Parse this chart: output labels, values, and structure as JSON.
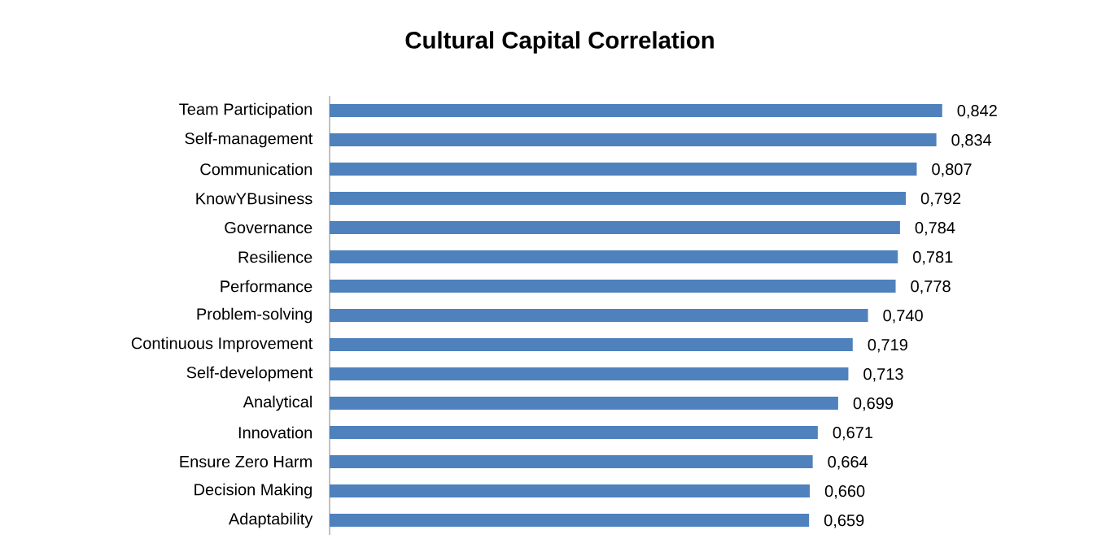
{
  "chart_data": {
    "type": "bar",
    "orientation": "horizontal",
    "title": "Cultural Capital Correlation",
    "categories": [
      "Team Participation",
      "Self-management",
      "Communication",
      "KnowYBusiness",
      "Governance",
      "Resilience",
      "Performance",
      "Problem-solving",
      "Continuous Improvement",
      "Self-development",
      "Analytical",
      "Innovation",
      "Ensure Zero Harm",
      "Decision Making",
      "Adaptability"
    ],
    "values": [
      0.842,
      0.834,
      0.807,
      0.792,
      0.784,
      0.781,
      0.778,
      0.74,
      0.719,
      0.713,
      0.699,
      0.671,
      0.664,
      0.66,
      0.659
    ],
    "value_labels": [
      "0,842",
      "0,834",
      "0,807",
      "0,792",
      "0,784",
      "0,781",
      "0,778",
      "0,740",
      "0,719",
      "0,713",
      "0,699",
      "0,671",
      "0,664",
      "0,660",
      "0,659"
    ],
    "color": "#4f81bd"
  }
}
